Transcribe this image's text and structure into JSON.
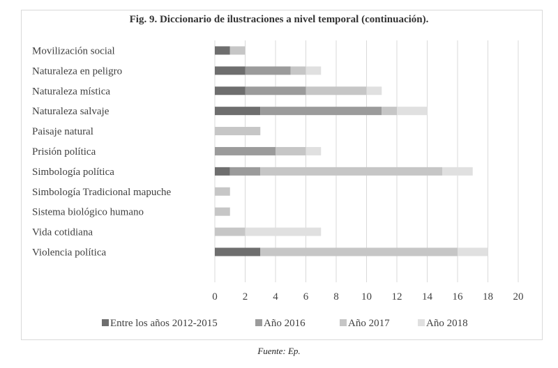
{
  "title": "Fig. 9. Diccionario de ilustraciones a nivel temporal (continuación).",
  "source": "Fuente: Ep.",
  "chart_data": {
    "type": "bar",
    "orientation": "horizontal",
    "stacked": true,
    "title": "Fig. 9. Diccionario de ilustraciones a nivel temporal (continuación).",
    "xlim": [
      0,
      20
    ],
    "x_ticks": [
      0,
      2,
      4,
      6,
      8,
      10,
      12,
      14,
      16,
      18,
      20
    ],
    "grid": true,
    "legend_position": "bottom",
    "categories": [
      "Movilización social",
      "Naturaleza en peligro",
      "Naturaleza mística",
      "Naturaleza salvaje",
      "Paisaje natural",
      "Prisión política",
      "Simbología política",
      "Simbología Tradicional mapuche",
      "Sistema biológico humano",
      "Vida cotidiana",
      "Violencia política"
    ],
    "series": [
      {
        "name": "Entre los años 2012-2015",
        "color": "#6e6e6e",
        "values": [
          1,
          2,
          2,
          3,
          0,
          0,
          1,
          0,
          0,
          0,
          3
        ]
      },
      {
        "name": "Año 2016",
        "color": "#9b9b9b",
        "values": [
          0,
          3,
          4,
          8,
          0,
          4,
          2,
          0,
          0,
          0,
          0
        ]
      },
      {
        "name": "Año 2017",
        "color": "#c6c6c6",
        "values": [
          1,
          1,
          4,
          1,
          3,
          2,
          12,
          1,
          1,
          2,
          13
        ]
      },
      {
        "name": "Año 2018",
        "color": "#e0e0e0",
        "values": [
          0,
          1,
          1,
          2,
          0,
          1,
          2,
          0,
          0,
          5,
          2
        ]
      }
    ]
  }
}
